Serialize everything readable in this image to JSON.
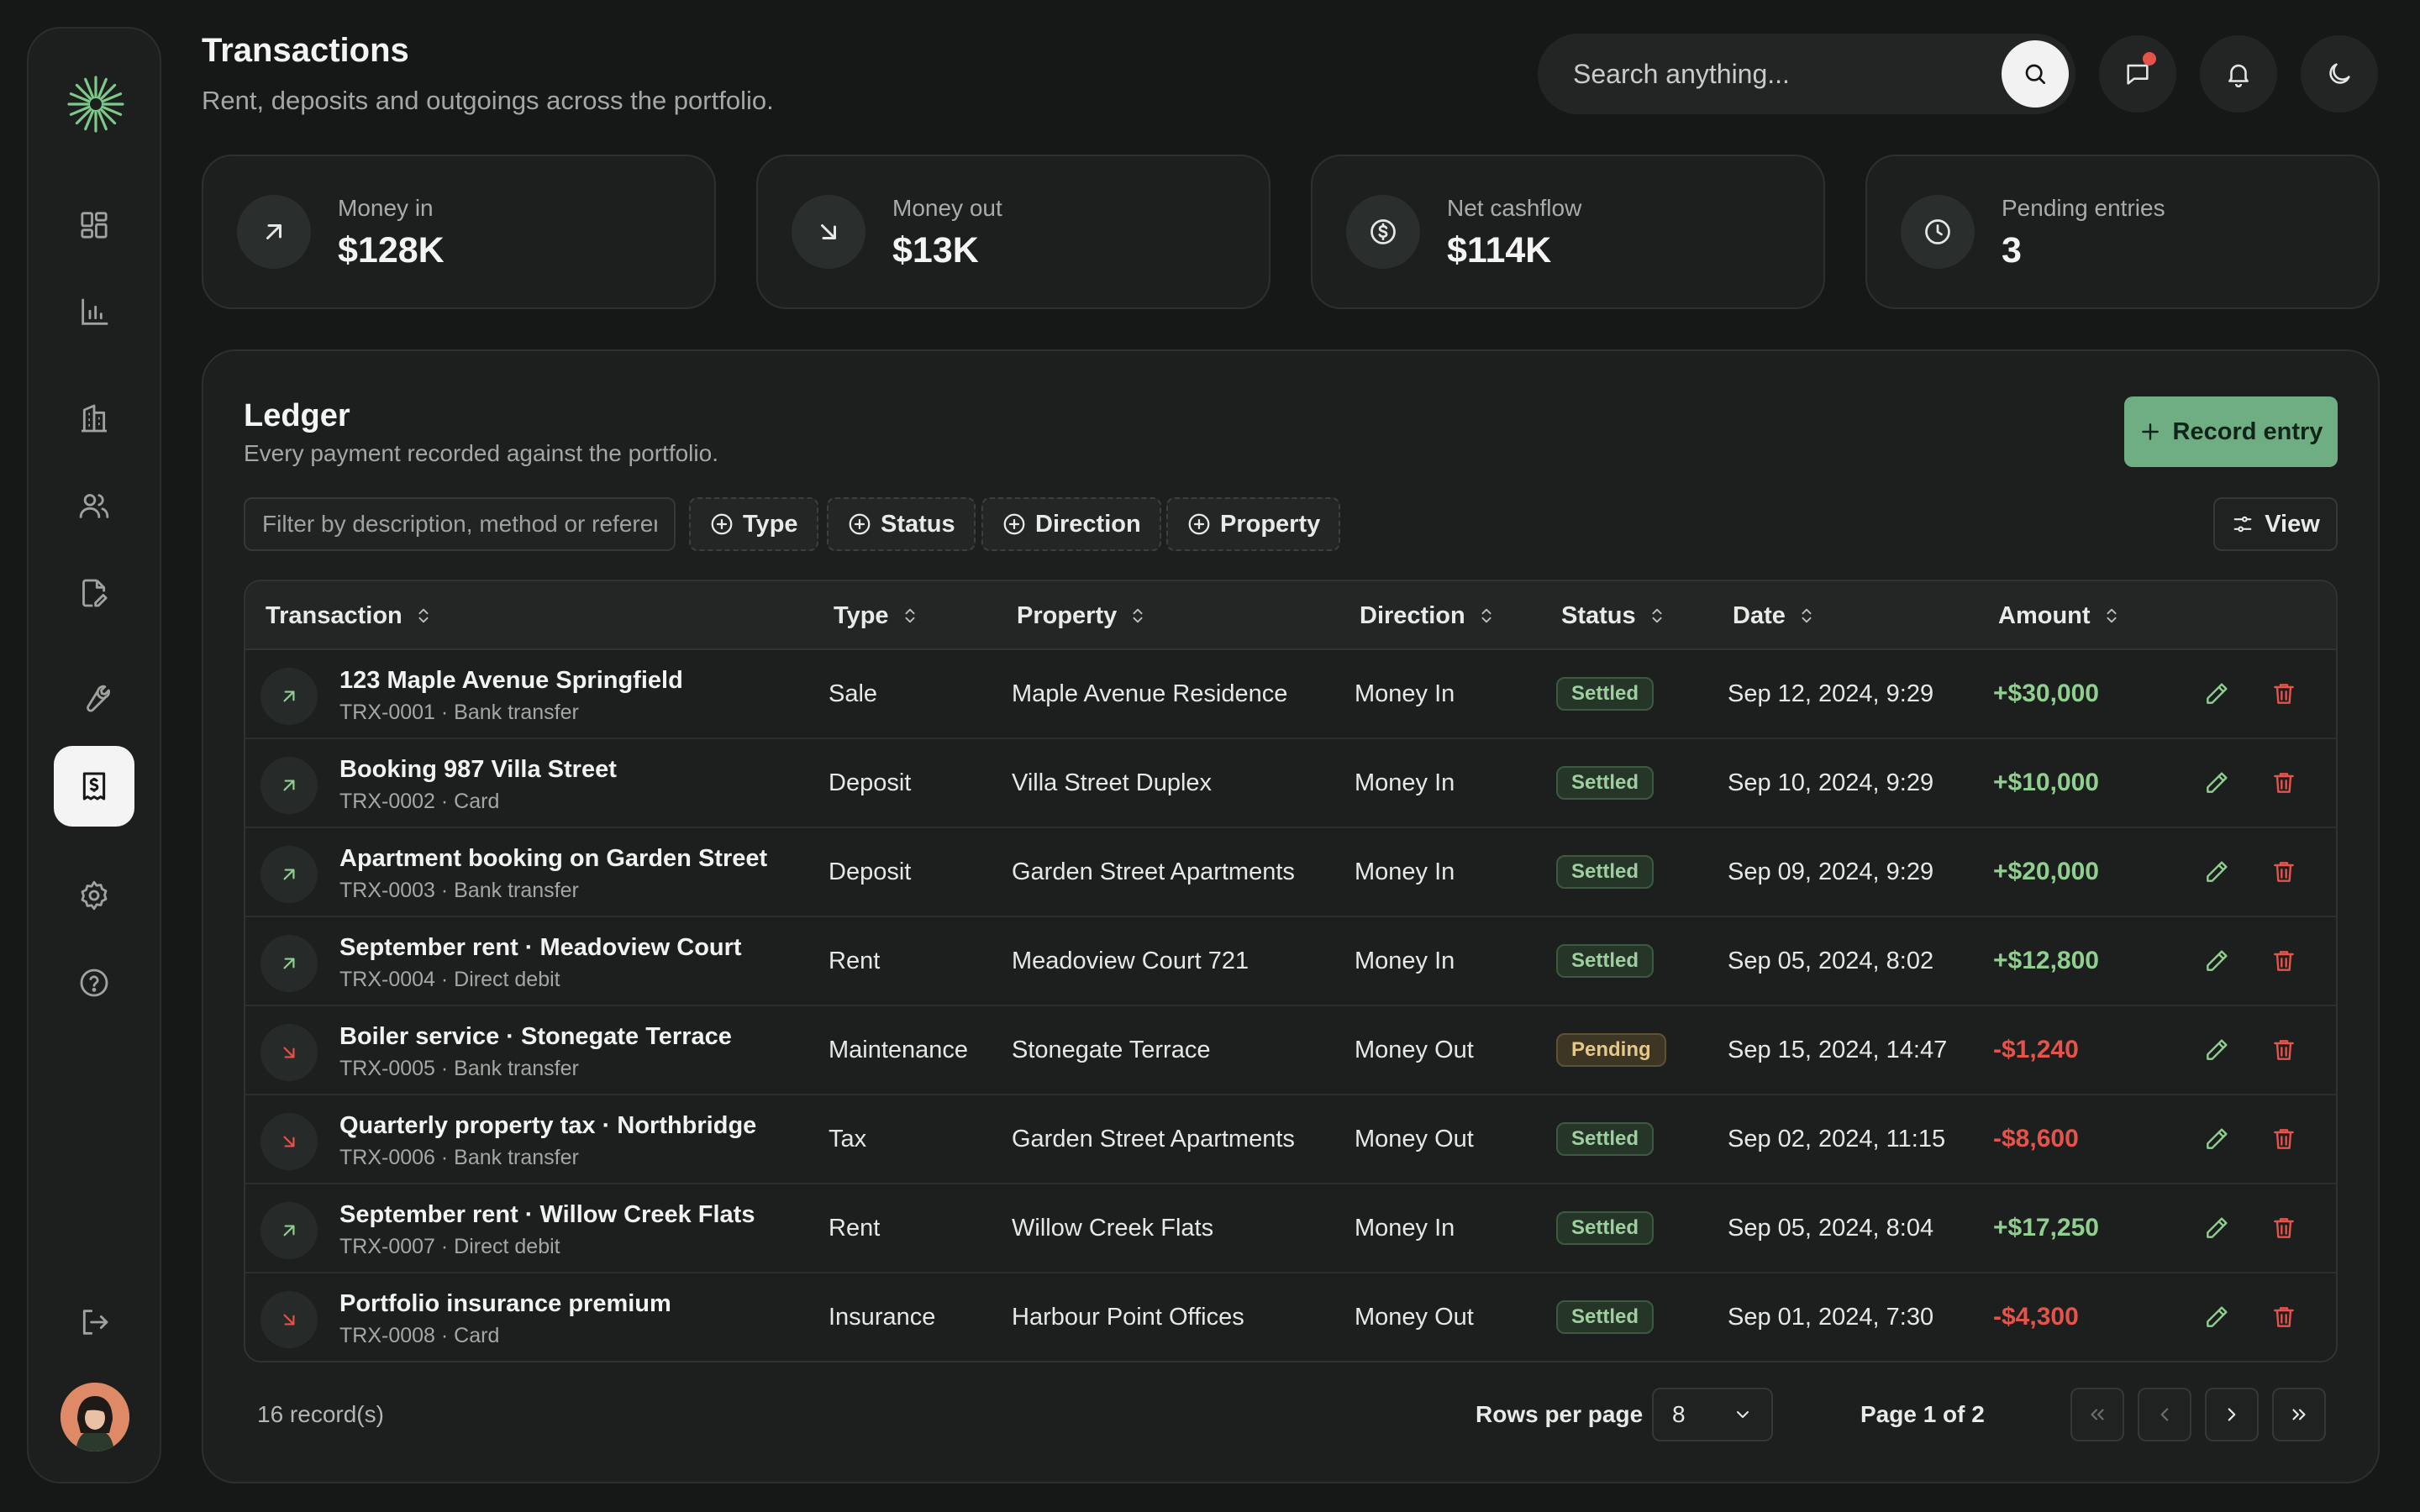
{
  "header": {
    "title": "Transactions",
    "subtitle": "Rent, deposits and outgoings across the portfolio.",
    "search_placeholder": "Search anything..."
  },
  "sidebar": {
    "nav": [
      "dashboard-icon",
      "analytics-icon",
      "building-icon",
      "users-icon",
      "document-edit-icon",
      "wrench-icon",
      "receipt-dollar-icon",
      "settings-icon",
      "help-icon"
    ],
    "active": "receipt-dollar-icon",
    "bottom": [
      "logout-icon",
      "avatar"
    ]
  },
  "stats": [
    {
      "label": "Money in",
      "value": "$128K",
      "icon": "arrow-up-right-icon"
    },
    {
      "label": "Money out",
      "value": "$13K",
      "icon": "arrow-down-right-icon"
    },
    {
      "label": "Net cashflow",
      "value": "$114K",
      "icon": "dollar-circle-icon"
    },
    {
      "label": "Pending entries",
      "value": "3",
      "icon": "clock-icon"
    }
  ],
  "ledger": {
    "title": "Ledger",
    "subtitle": "Every payment recorded against the portfolio.",
    "record_button": "Record entry",
    "filter_placeholder": "Filter by description, method or reference",
    "chips": [
      "Type",
      "Status",
      "Direction",
      "Property"
    ],
    "view_button": "View",
    "columns": [
      "Transaction",
      "Type",
      "Property",
      "Direction",
      "Status",
      "Date",
      "Amount"
    ],
    "rows": [
      {
        "title": "123 Maple Avenue Springfield",
        "sub": "TRX-0001 · Bank transfer",
        "type": "Sale",
        "property": "Maple Avenue Residence",
        "direction": "Money In",
        "status": "Settled",
        "date": "Sep 12, 2024, 9:29",
        "amount": "+$30,000",
        "dir": "in"
      },
      {
        "title": "Booking 987 Villa Street",
        "sub": "TRX-0002 · Card",
        "type": "Deposit",
        "property": "Villa Street Duplex",
        "direction": "Money In",
        "status": "Settled",
        "date": "Sep 10, 2024, 9:29",
        "amount": "+$10,000",
        "dir": "in"
      },
      {
        "title": "Apartment booking on Garden Street",
        "sub": "TRX-0003 · Bank transfer",
        "type": "Deposit",
        "property": "Garden Street Apartments",
        "direction": "Money In",
        "status": "Settled",
        "date": "Sep 09, 2024, 9:29",
        "amount": "+$20,000",
        "dir": "in"
      },
      {
        "title": "September rent · Meadoview Court",
        "sub": "TRX-0004 · Direct debit",
        "type": "Rent",
        "property": "Meadoview Court 721",
        "direction": "Money In",
        "status": "Settled",
        "date": "Sep 05, 2024, 8:02",
        "amount": "+$12,800",
        "dir": "in"
      },
      {
        "title": "Boiler service · Stonegate Terrace",
        "sub": "TRX-0005 · Bank transfer",
        "type": "Maintenance",
        "property": "Stonegate Terrace",
        "direction": "Money Out",
        "status": "Pending",
        "date": "Sep 15, 2024, 14:47",
        "amount": "-$1,240",
        "dir": "out"
      },
      {
        "title": "Quarterly property tax · Northbridge",
        "sub": "TRX-0006 · Bank transfer",
        "type": "Tax",
        "property": "Garden Street Apartments",
        "direction": "Money Out",
        "status": "Settled",
        "date": "Sep 02, 2024, 11:15",
        "amount": "-$8,600",
        "dir": "out"
      },
      {
        "title": "September rent · Willow Creek Flats",
        "sub": "TRX-0007 · Direct debit",
        "type": "Rent",
        "property": "Willow Creek Flats",
        "direction": "Money In",
        "status": "Settled",
        "date": "Sep 05, 2024, 8:04",
        "amount": "+$17,250",
        "dir": "in"
      },
      {
        "title": "Portfolio insurance premium",
        "sub": "TRX-0008 · Card",
        "type": "Insurance",
        "property": "Harbour Point Offices",
        "direction": "Money Out",
        "status": "Settled",
        "date": "Sep 01, 2024, 7:30",
        "amount": "-$4,300",
        "dir": "out"
      }
    ],
    "footer": {
      "records": "16 record(s)",
      "rows_per_page_label": "Rows per page",
      "rows_per_page_value": "8",
      "page_label": "Page 1 of 2"
    }
  },
  "colors": {
    "accent": "#6fae82",
    "positive": "#8fd08f",
    "negative": "#e5534b",
    "edit": "#8fd08f",
    "delete": "#e5534b"
  }
}
